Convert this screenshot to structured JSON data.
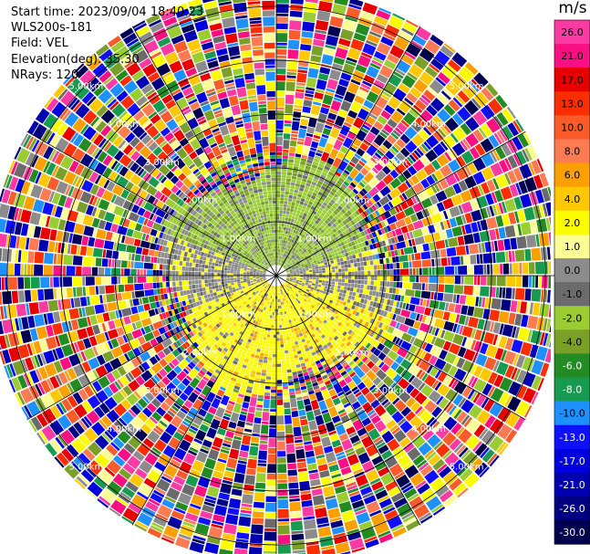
{
  "header": {
    "start_time": "Start time: 2023/09/04 18:40:23",
    "instrument": "WLS200s-181",
    "field": "Field: VEL",
    "elevation": "Elevation(deg): 35.30",
    "nrays": "NRays: 120"
  },
  "colorbar": {
    "unit": "m/s",
    "ticks": [
      "26.0",
      "21.0",
      "17.0",
      "13.0",
      "10.0",
      "8.0",
      "6.0",
      "4.0",
      "2.0",
      "1.0",
      "0.0",
      "-1.0",
      "-2.0",
      "-4.0",
      "-6.0",
      "-8.0",
      "-10.0",
      "-13.0",
      "-17.0",
      "-21.0",
      "-26.0",
      "-30.0"
    ],
    "colors": [
      "#fb3aa3",
      "#fb0f82",
      "#e80000",
      "#fb2e00",
      "#fb5a29",
      "#fc7b52",
      "#fca000",
      "#ffc800",
      "#fcfc00",
      "#fdfd96",
      "#8c8c8c",
      "#6b6b6b",
      "#9acd32",
      "#7ba02a",
      "#228b22",
      "#169b50",
      "#1e90ff",
      "#1010ff",
      "#0000dc",
      "#0000b0",
      "#000080",
      "#000050"
    ]
  },
  "chart_data": {
    "type": "heatmap",
    "projection": "polar (PPI)",
    "field": "VEL",
    "units": "m/s",
    "nrays": 120,
    "range_rings_km": [
      1,
      2,
      3,
      4,
      5
    ],
    "ring_labels": [
      "1.00km",
      "2.00km",
      "3.00km",
      "4.00km",
      "5.00km"
    ],
    "spokes_every_deg": 30,
    "color_scale": [
      -30,
      -26,
      -21,
      -17,
      -13,
      -10,
      -8,
      -6,
      -4,
      -2,
      -1,
      0,
      1,
      2,
      4,
      6,
      8,
      10,
      13,
      17,
      21,
      26
    ],
    "regions": [
      {
        "range_km": [
          0,
          2.1
        ],
        "azimuth": "north half",
        "velocity_m_s": "-1 to -4",
        "color": "#9acd32"
      },
      {
        "range_km": [
          0,
          2.1
        ],
        "azimuth": "south half",
        "velocity_m_s": "2 to 6",
        "color": "#fcfc00"
      },
      {
        "range_km": [
          0,
          2.1
        ],
        "azimuth": "east-west band",
        "velocity_m_s": "0 to -1",
        "color": "#8c8c8c"
      },
      {
        "range_km": [
          2.1,
          5.3
        ],
        "azimuth": "all",
        "velocity_m_s": "noise, full scale",
        "color": "mixed"
      }
    ]
  }
}
